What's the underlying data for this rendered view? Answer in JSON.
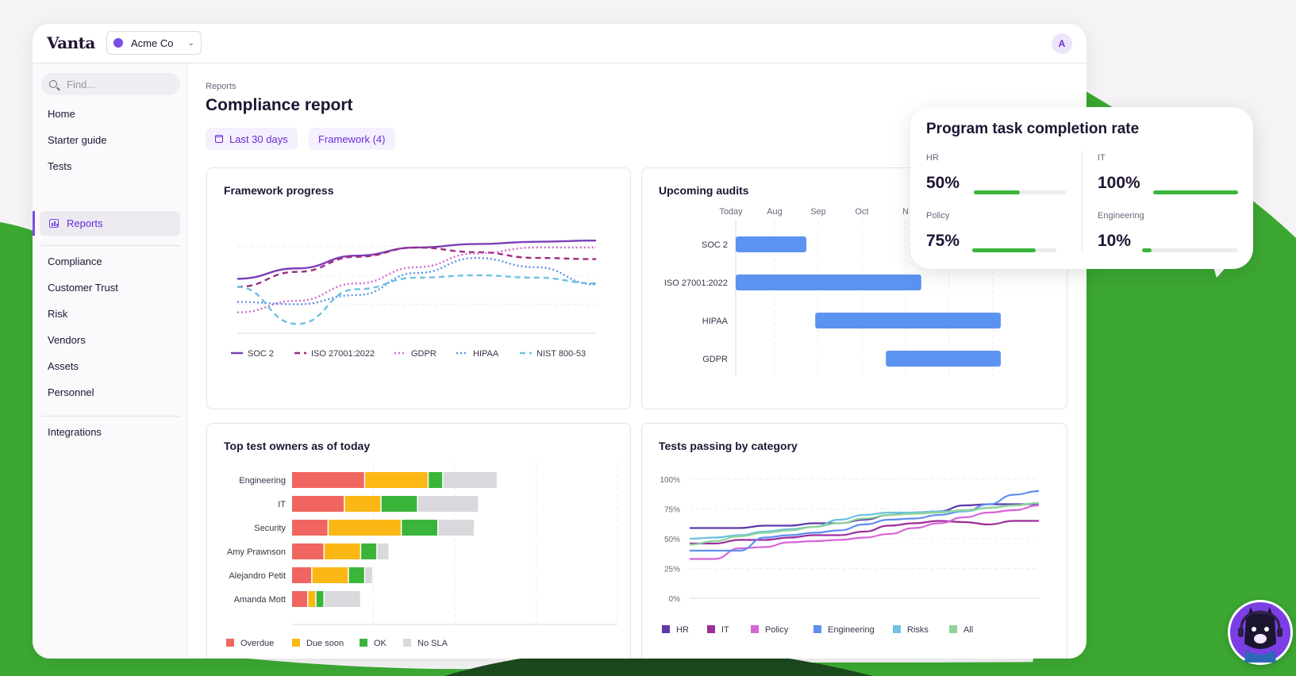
{
  "app": {
    "brand": "Vanta",
    "org_name": "Acme Co",
    "avatar_initial": "A"
  },
  "sidebar": {
    "search_placeholder": "Find...",
    "items": [
      {
        "label": "Home"
      },
      {
        "label": "Starter guide"
      },
      {
        "label": "Tests"
      },
      {
        "label": "Reports",
        "active": true
      },
      {
        "label": "Compliance"
      },
      {
        "label": "Customer Trust"
      },
      {
        "label": "Risk"
      },
      {
        "label": "Vendors"
      },
      {
        "label": "Assets"
      },
      {
        "label": "Personnel"
      },
      {
        "label": "Integrations"
      }
    ]
  },
  "page": {
    "breadcrumb": "Reports",
    "title": "Compliance report",
    "filters": {
      "date_range": "Last 30 days",
      "framework": "Framework (4)"
    }
  },
  "cards": {
    "framework_progress": "Framework progress",
    "upcoming_audits": "Upcoming audits",
    "top_test_owners": "Top test owners as of today",
    "tests_passing": "Tests passing by category"
  },
  "popup": {
    "title": "Program task completion rate",
    "metrics": [
      {
        "label": "HR",
        "value": "50%",
        "fraction": 0.5
      },
      {
        "label": "IT",
        "value": "100%",
        "fraction": 1.0
      },
      {
        "label": "Policy",
        "value": "75%",
        "fraction": 0.75
      },
      {
        "label": "Engineering",
        "value": "10%",
        "fraction": 0.1
      }
    ]
  },
  "colors": {
    "accent": "#6a2bd9",
    "soc2": "#7b3fb8",
    "iso": "#9c2d82",
    "gdpr": "#d06ad0",
    "hipaa": "#5b93e8",
    "nist": "#6ec1e0",
    "overdue": "#f06560",
    "due_soon": "#fbb714",
    "ok": "#3ab53a",
    "no_sla": "#d9d8dc",
    "hr": "#5d3aa8",
    "it": "#9c2d9a",
    "policy": "#d865d8",
    "engineering": "#5f8ff0",
    "risks": "#6ec1e0",
    "all": "#8ed49a",
    "gantt_bar": "#5b93f0",
    "background_green": "#3ca832"
  },
  "chart_data": [
    {
      "id": "framework_progress",
      "type": "line",
      "series": [
        {
          "name": "SOC 2",
          "color": "soc2",
          "style": "solid",
          "values": [
            47,
            56,
            67,
            74,
            77,
            79,
            80
          ]
        },
        {
          "name": "ISO 27001:2022",
          "color": "iso",
          "style": "dashed",
          "values": [
            40,
            53,
            66,
            74,
            70,
            65,
            64
          ]
        },
        {
          "name": "GDPR",
          "color": "gdpr",
          "style": "dotted",
          "values": [
            18,
            28,
            43,
            57,
            69,
            74,
            74
          ]
        },
        {
          "name": "HIPAA",
          "color": "hipaa",
          "style": "dotted",
          "values": [
            27,
            25,
            33,
            52,
            65,
            57,
            42
          ]
        },
        {
          "name": "NIST 800-53",
          "color": "nist",
          "style": "dashed",
          "values": [
            40,
            8,
            38,
            48,
            50,
            48,
            43
          ]
        }
      ],
      "grid": true
    },
    {
      "id": "upcoming_audits",
      "type": "bar",
      "orientation": "gantt",
      "x_ticks": [
        "Today",
        "Aug",
        "Sep",
        "Oct",
        "N"
      ],
      "categories": [
        "SOC 2",
        "ISO 27001:2022",
        "HIPAA",
        "GDPR"
      ],
      "ranges": [
        [
          0,
          0.8
        ],
        [
          0,
          2.1
        ],
        [
          0.9,
          3.0
        ],
        [
          1.7,
          3.0
        ]
      ],
      "xlim": [
        0,
        3.0
      ]
    },
    {
      "id": "top_test_owners",
      "type": "bar",
      "orientation": "horizontal",
      "stacked": true,
      "categories": [
        "Engineering",
        "IT",
        "Security",
        "Amy Prawnson",
        "Alejandro Petit",
        "Amanda Mott"
      ],
      "series": [
        {
          "name": "Overdue",
          "color": "overdue",
          "values": [
            9,
            6.5,
            4.5,
            4,
            2.5,
            2
          ]
        },
        {
          "name": "Due soon",
          "color": "due_soon",
          "values": [
            7.8,
            4.5,
            9,
            4.5,
            4.5,
            1
          ]
        },
        {
          "name": "OK",
          "color": "ok",
          "values": [
            1.8,
            4.5,
            4.5,
            2,
            2,
            1
          ]
        },
        {
          "name": "No SLA",
          "color": "no_sla",
          "values": [
            6.7,
            7.5,
            4.5,
            1.5,
            1,
            4.5
          ]
        }
      ],
      "xlim": [
        0,
        40
      ],
      "grid": true
    },
    {
      "id": "tests_passing",
      "type": "line",
      "y_ticks": [
        "100%",
        "75%",
        "50%",
        "25%",
        "0%"
      ],
      "ylim": [
        0,
        100
      ],
      "series": [
        {
          "name": "HR",
          "color": "hr",
          "values": [
            59,
            59,
            59,
            61,
            61,
            63,
            63,
            66,
            70,
            72,
            73,
            78,
            79,
            79,
            79
          ]
        },
        {
          "name": "IT",
          "color": "it",
          "values": [
            46,
            46,
            49,
            49,
            51,
            53,
            53,
            56,
            61,
            63,
            65,
            64,
            62,
            65,
            65
          ]
        },
        {
          "name": "Policy",
          "color": "policy",
          "values": [
            33,
            33,
            42,
            43,
            47,
            48,
            49,
            51,
            54,
            59,
            63,
            68,
            72,
            74,
            78
          ]
        },
        {
          "name": "Engineering",
          "color": "engineering",
          "values": [
            40,
            40,
            40,
            51,
            53,
            55,
            57,
            62,
            66,
            67,
            70,
            73,
            79,
            87,
            90
          ]
        },
        {
          "name": "Risks",
          "color": "risks",
          "values": [
            50,
            51,
            53,
            56,
            58,
            60,
            66,
            70,
            72,
            72,
            73,
            73,
            76,
            78,
            80
          ]
        },
        {
          "name": "All",
          "color": "all",
          "values": [
            45,
            48,
            52,
            55,
            57,
            60,
            63,
            67,
            70,
            71,
            72,
            74,
            76,
            78,
            80
          ]
        }
      ],
      "grid": true
    }
  ]
}
